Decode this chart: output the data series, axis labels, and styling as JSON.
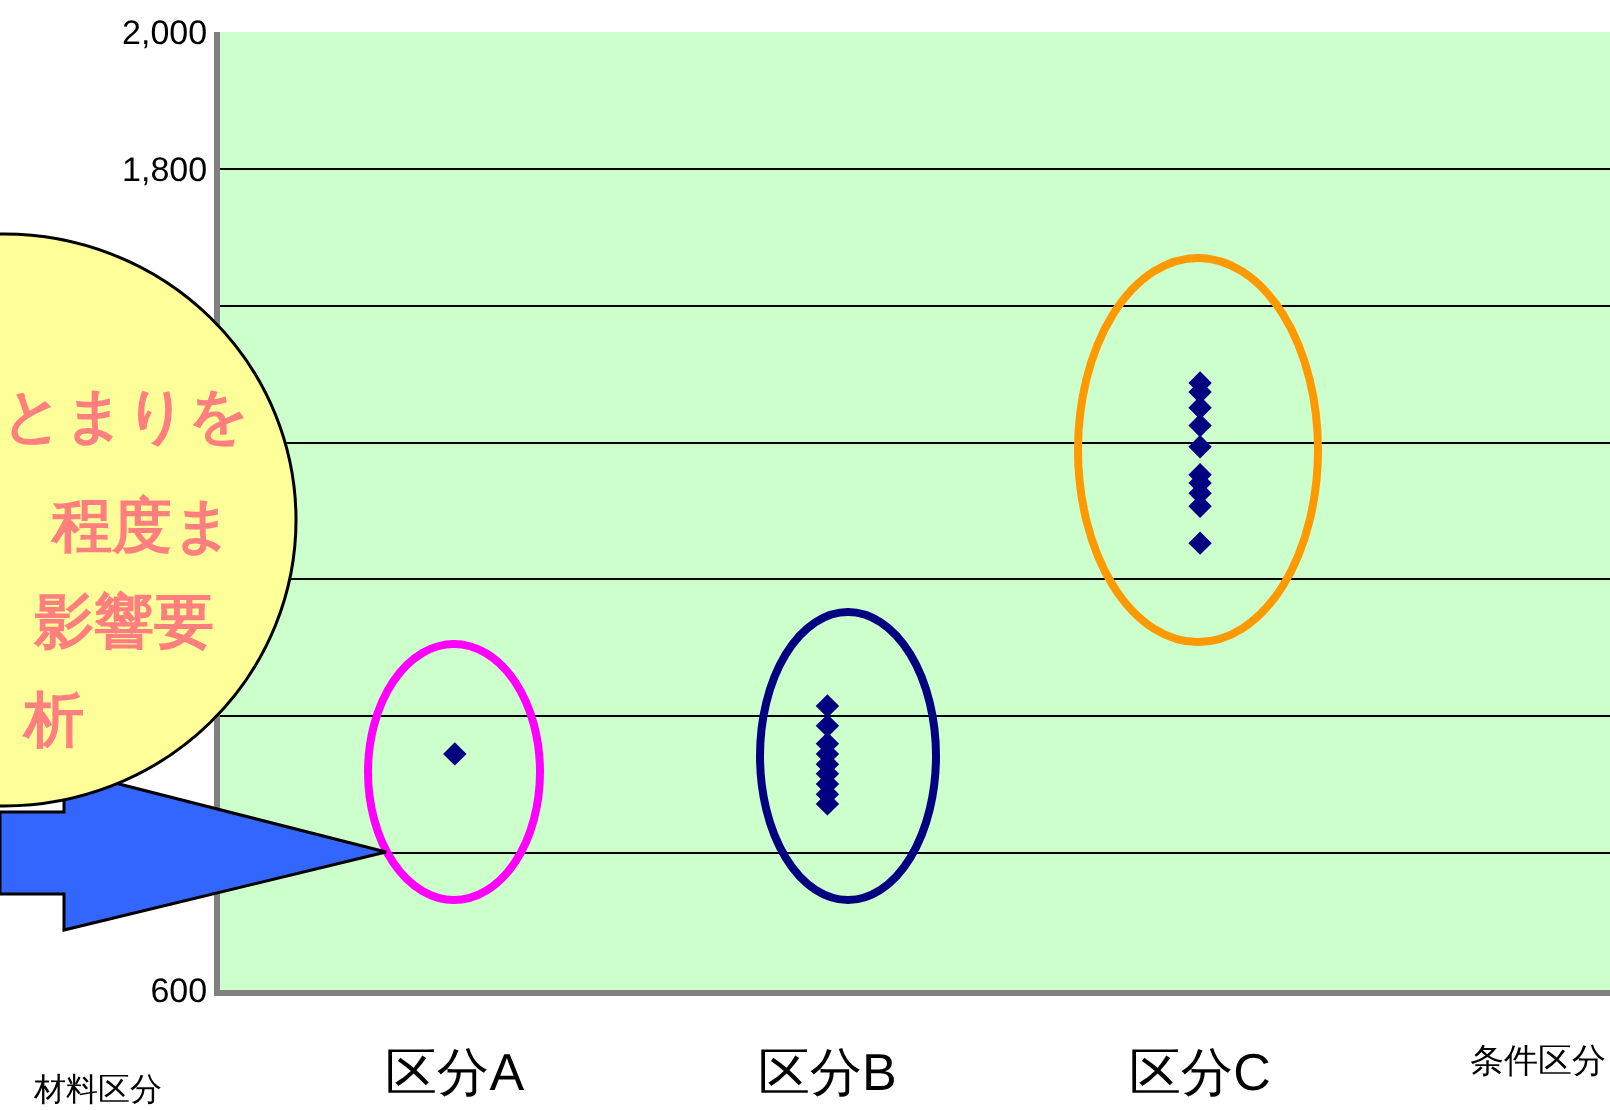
{
  "chart_data": {
    "type": "scatter",
    "categories": [
      "区分A",
      "区分B",
      "区分C"
    ],
    "xlabel": "条件区分",
    "series": [
      {
        "color": "#000080",
        "x": [
          "区分A",
          "区分B",
          "区分B",
          "区分B",
          "区分B",
          "区分B",
          "区分B",
          "区分B",
          "区分B",
          "区分B",
          "区分C",
          "区分C",
          "区分C",
          "区分C",
          "区分C",
          "区分C",
          "区分C",
          "区分C",
          "区分C",
          "区分C"
        ],
        "values": [
          945,
          1015,
          986,
          960,
          945,
          930,
          916,
          901,
          886,
          872,
          1487,
          1474,
          1451,
          1425,
          1394,
          1353,
          1341,
          1326,
          1307,
          1253
        ]
      }
    ],
    "ylim": [
      600,
      2000
    ],
    "yticks": [
      600,
      {
        "value": 800,
        "label": null
      },
      {
        "value": 1000,
        "label": null
      },
      {
        "value": 1200,
        "label": null
      },
      {
        "value": 1400,
        "label": null
      },
      {
        "value": 1600,
        "label": null
      },
      {
        "value": 1800,
        "label": "1,800"
      },
      {
        "value": 2000,
        "label": "2,000"
      }
    ],
    "grid": "y",
    "marker": "diamond",
    "annotations": [
      "材料区分",
      "とまりを",
      "程度ま",
      "影響要",
      "析"
    ]
  }
}
